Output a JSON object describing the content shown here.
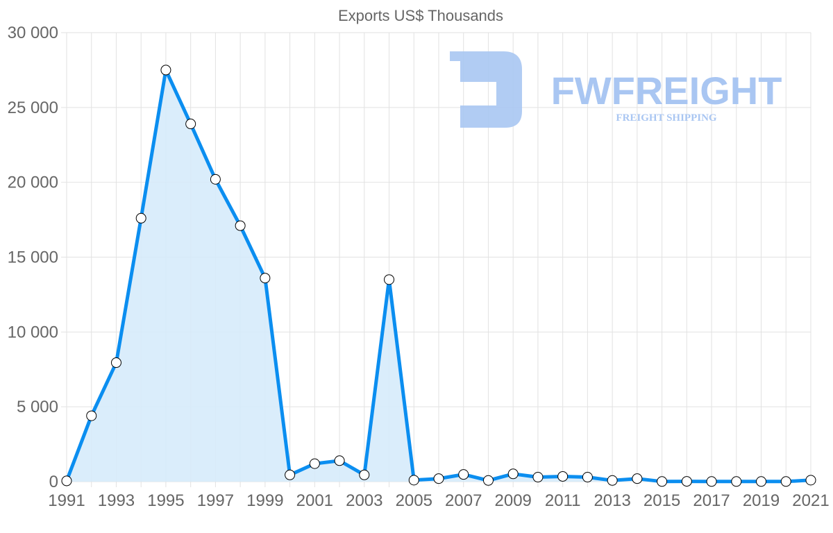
{
  "chart_data": {
    "type": "line",
    "title": "Exports US$ Thousands",
    "xlabel": "",
    "ylabel": "",
    "x": [
      1991,
      1992,
      1993,
      1994,
      1995,
      1996,
      1997,
      1998,
      1999,
      2000,
      2001,
      2002,
      2003,
      2004,
      2005,
      2006,
      2007,
      2008,
      2009,
      2010,
      2011,
      2012,
      2013,
      2014,
      2015,
      2016,
      2017,
      2018,
      2019,
      2020,
      2021
    ],
    "series": [
      {
        "name": "Exports US$ Thousands",
        "values": [
          50,
          4400,
          7950,
          17600,
          27500,
          23900,
          20200,
          17100,
          13600,
          450,
          1200,
          1400,
          450,
          13500,
          100,
          200,
          480,
          80,
          520,
          300,
          350,
          300,
          80,
          200,
          10,
          20,
          10,
          10,
          10,
          10,
          100
        ],
        "color": "#0b8ef0",
        "fill": "#d6ebfb",
        "filled": true
      }
    ],
    "ylim": [
      0,
      30000
    ],
    "y_ticks": [
      {
        "value": 0,
        "label": "0"
      },
      {
        "value": 5000,
        "label": "5 000"
      },
      {
        "value": 10000,
        "label": "10 000"
      },
      {
        "value": 15000,
        "label": "15 000"
      },
      {
        "value": 20000,
        "label": "20 000"
      },
      {
        "value": 25000,
        "label": "25 000"
      },
      {
        "value": 30000,
        "label": "30 000"
      }
    ],
    "x_tick_labels": [
      "1991",
      "1993",
      "1995",
      "1997",
      "1999",
      "2001",
      "2003",
      "2005",
      "2007",
      "2009",
      "2011",
      "2013",
      "2015",
      "2017",
      "2019",
      "2021"
    ],
    "grid": true,
    "legend": "none"
  },
  "watermark": {
    "brand": "FWFREIGHT",
    "tagline": "FREIGHT SHIPPING",
    "color": "#a9c6f2"
  },
  "colors": {
    "grid": "#e2e2e2",
    "axis_text": "#666666",
    "title_text": "#666666",
    "point_fill": "#ffffff",
    "point_stroke": "#000000"
  }
}
